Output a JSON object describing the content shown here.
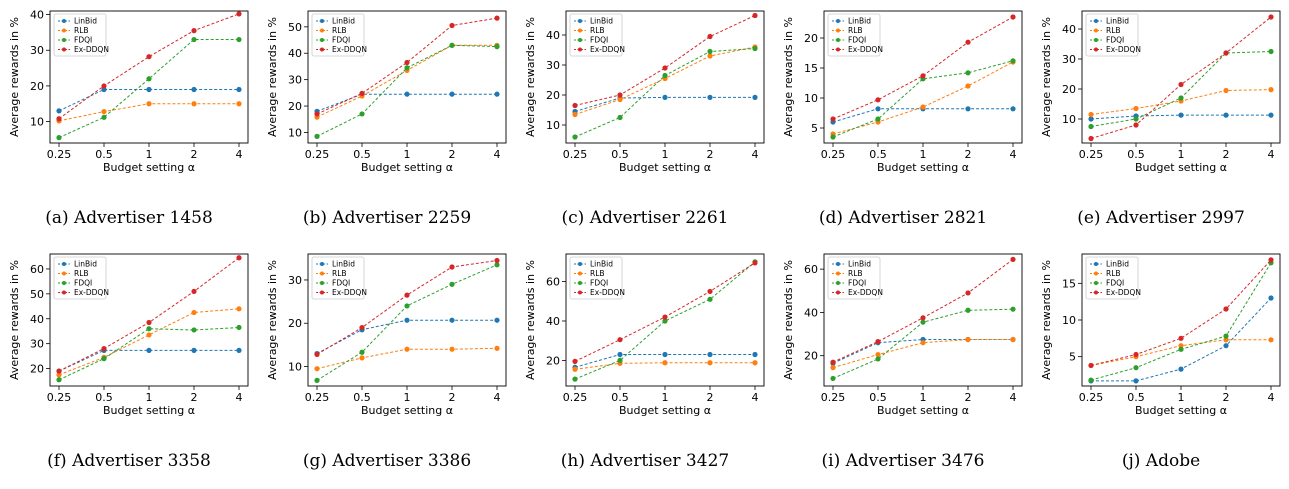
{
  "figure": {
    "legend_labels": [
      "LinBid",
      "RLB",
      "FDQI",
      "Ex-DDQN"
    ],
    "colors": {
      "LinBid": "#1f77b4",
      "RLB": "#ff7f0e",
      "FDQI": "#2ca02c",
      "Ex-DDQN": "#d62728"
    }
  },
  "chart_data": [
    {
      "type": "line",
      "caption": "(a) Advertiser 1458",
      "xlabel": "Budget setting α",
      "ylabel": "Average rewards in %",
      "categories": [
        "0.25",
        "0.5",
        "1",
        "2",
        "4"
      ],
      "yticks": [
        10,
        20,
        30,
        40
      ],
      "ylim": [
        4,
        41
      ],
      "legend": "top-left",
      "series": [
        {
          "name": "LinBid",
          "values": [
            13.0,
            19.0,
            19.0,
            19.0,
            19.0
          ]
        },
        {
          "name": "RLB",
          "values": [
            10.2,
            12.8,
            15.0,
            15.0,
            15.0
          ]
        },
        {
          "name": "FDQI",
          "values": [
            5.5,
            11.2,
            22.0,
            33.0,
            33.0
          ]
        },
        {
          "name": "Ex-DDQN",
          "values": [
            10.8,
            20.0,
            28.2,
            35.5,
            40.2
          ]
        }
      ]
    },
    {
      "type": "line",
      "caption": "(b) Advertiser 2259",
      "xlabel": "Budget setting α",
      "ylabel": "Average rewards in %",
      "categories": [
        "0.25",
        "0.5",
        "1",
        "2",
        "4"
      ],
      "yticks": [
        10,
        20,
        30,
        40,
        50
      ],
      "ylim": [
        6,
        56
      ],
      "legend": "top-left",
      "series": [
        {
          "name": "LinBid",
          "values": [
            18.0,
            24.5,
            24.5,
            24.5,
            24.5
          ]
        },
        {
          "name": "RLB",
          "values": [
            15.8,
            23.8,
            33.5,
            43.0,
            43.0
          ]
        },
        {
          "name": "FDQI",
          "values": [
            8.5,
            17.0,
            34.5,
            43.0,
            42.5
          ]
        },
        {
          "name": "Ex-DDQN",
          "values": [
            17.0,
            24.8,
            36.5,
            50.5,
            53.3
          ]
        }
      ]
    },
    {
      "type": "line",
      "caption": "(c) Advertiser 2261",
      "xlabel": "Budget setting α",
      "ylabel": "Average rewards in %",
      "categories": [
        "0.25",
        "0.5",
        "1",
        "2",
        "4"
      ],
      "yticks": [
        10,
        20,
        30,
        40
      ],
      "ylim": [
        4,
        48
      ],
      "legend": "top-left",
      "series": [
        {
          "name": "LinBid",
          "values": [
            14.5,
            19.0,
            19.2,
            19.2,
            19.2
          ]
        },
        {
          "name": "RLB",
          "values": [
            13.5,
            18.5,
            25.5,
            33.0,
            36.0
          ]
        },
        {
          "name": "FDQI",
          "values": [
            6.0,
            12.5,
            26.5,
            34.5,
            35.5
          ]
        },
        {
          "name": "Ex-DDQN",
          "values": [
            16.5,
            20.0,
            29.0,
            39.5,
            46.5
          ]
        }
      ]
    },
    {
      "type": "line",
      "caption": "(d) Advertiser 2821",
      "xlabel": "Budget setting α",
      "ylabel": "Average rewards in %",
      "categories": [
        "0.25",
        "0.5",
        "1",
        "2",
        "4"
      ],
      "yticks": [
        5,
        10,
        15,
        20
      ],
      "ylim": [
        2.5,
        24.5
      ],
      "legend": "top-left",
      "series": [
        {
          "name": "LinBid",
          "values": [
            6.0,
            8.2,
            8.2,
            8.2,
            8.2
          ]
        },
        {
          "name": "RLB",
          "values": [
            4.0,
            6.0,
            8.5,
            12.0,
            16.0
          ]
        },
        {
          "name": "FDQI",
          "values": [
            3.5,
            6.5,
            13.2,
            14.2,
            16.2
          ]
        },
        {
          "name": "Ex-DDQN",
          "values": [
            6.5,
            9.7,
            13.7,
            19.3,
            23.5
          ]
        }
      ]
    },
    {
      "type": "line",
      "caption": "(e) Advertiser 2997",
      "xlabel": "Budget setting α",
      "ylabel": "Average rewards in %",
      "categories": [
        "0.25",
        "0.5",
        "1",
        "2",
        "4"
      ],
      "yticks": [
        10,
        20,
        30,
        40
      ],
      "ylim": [
        2,
        46
      ],
      "legend": "top-left",
      "series": [
        {
          "name": "LinBid",
          "values": [
            10.0,
            11.0,
            11.3,
            11.3,
            11.3
          ]
        },
        {
          "name": "RLB",
          "values": [
            11.5,
            13.5,
            16.0,
            19.5,
            19.8
          ]
        },
        {
          "name": "FDQI",
          "values": [
            7.5,
            10.0,
            17.0,
            32.0,
            32.5
          ]
        },
        {
          "name": "Ex-DDQN",
          "values": [
            3.5,
            8.0,
            21.5,
            32.0,
            44.0
          ]
        }
      ]
    },
    {
      "type": "line",
      "caption": "(f) Advertiser 3358",
      "xlabel": "Budget setting α",
      "ylabel": "Average rewards in %",
      "categories": [
        "0.25",
        "0.5",
        "1",
        "2",
        "4"
      ],
      "yticks": [
        20,
        30,
        40,
        50,
        60
      ],
      "ylim": [
        13,
        66
      ],
      "legend": "top-left",
      "series": [
        {
          "name": "LinBid",
          "values": [
            19.0,
            27.3,
            27.3,
            27.3,
            27.3
          ]
        },
        {
          "name": "RLB",
          "values": [
            17.5,
            24.5,
            33.5,
            42.5,
            44.0
          ]
        },
        {
          "name": "FDQI",
          "values": [
            15.5,
            24.0,
            36.0,
            35.5,
            36.5
          ]
        },
        {
          "name": "Ex-DDQN",
          "values": [
            19.0,
            28.0,
            38.5,
            51.0,
            64.5
          ]
        }
      ]
    },
    {
      "type": "line",
      "caption": "(g) Advertiser 3386",
      "xlabel": "Budget setting α",
      "ylabel": "Average rewards in %",
      "categories": [
        "0.25",
        "0.5",
        "1",
        "2",
        "4"
      ],
      "yticks": [
        10,
        20,
        30
      ],
      "ylim": [
        5.5,
        36
      ],
      "legend": "top-left",
      "series": [
        {
          "name": "LinBid",
          "values": [
            13.0,
            18.5,
            20.7,
            20.7,
            20.7
          ]
        },
        {
          "name": "RLB",
          "values": [
            9.5,
            12.0,
            14.0,
            14.0,
            14.2
          ]
        },
        {
          "name": "FDQI",
          "values": [
            6.8,
            13.3,
            24.0,
            29.0,
            33.5
          ]
        },
        {
          "name": "Ex-DDQN",
          "values": [
            12.8,
            19.0,
            26.5,
            33.0,
            34.5
          ]
        }
      ]
    },
    {
      "type": "line",
      "caption": "(h) Advertiser 3427",
      "xlabel": "Budget setting α",
      "ylabel": "Average rewards in %",
      "categories": [
        "0.25",
        "0.5",
        "1",
        "2",
        "4"
      ],
      "yticks": [
        20,
        40,
        60
      ],
      "ylim": [
        7,
        74
      ],
      "legend": "top-left",
      "series": [
        {
          "name": "LinBid",
          "values": [
            16.5,
            23.0,
            23.0,
            23.0,
            23.0
          ]
        },
        {
          "name": "RLB",
          "values": [
            15.5,
            18.5,
            18.8,
            18.8,
            18.8
          ]
        },
        {
          "name": "FDQI",
          "values": [
            10.5,
            20.0,
            40.0,
            51.0,
            70.0
          ]
        },
        {
          "name": "Ex-DDQN",
          "values": [
            19.5,
            30.5,
            42.0,
            55.0,
            69.5
          ]
        }
      ]
    },
    {
      "type": "line",
      "caption": "(i) Advertiser 3476",
      "xlabel": "Budget setting α",
      "ylabel": "Average rewards in %",
      "categories": [
        "0.25",
        "0.5",
        "1",
        "2",
        "4"
      ],
      "yticks": [
        20,
        40,
        60
      ],
      "ylim": [
        6,
        67
      ],
      "legend": "top-left",
      "series": [
        {
          "name": "LinBid",
          "values": [
            16.5,
            26.0,
            27.5,
            27.5,
            27.5
          ]
        },
        {
          "name": "RLB",
          "values": [
            14.5,
            20.5,
            26.0,
            27.5,
            27.5
          ]
        },
        {
          "name": "FDQI",
          "values": [
            9.5,
            18.5,
            35.5,
            41.0,
            41.5
          ]
        },
        {
          "name": "Ex-DDQN",
          "values": [
            17.0,
            26.5,
            37.5,
            49.0,
            64.5
          ]
        }
      ]
    },
    {
      "type": "line",
      "caption": "(j) Adobe",
      "xlabel": "Budget setting α",
      "ylabel": "Average rewards in %",
      "categories": [
        "0.25",
        "0.5",
        "1",
        "2",
        "4"
      ],
      "yticks": [
        5,
        10,
        15
      ],
      "ylim": [
        1.0,
        19.0
      ],
      "legend": "top-left",
      "series": [
        {
          "name": "LinBid",
          "values": [
            1.7,
            1.7,
            3.3,
            6.5,
            13.0
          ]
        },
        {
          "name": "RLB",
          "values": [
            3.8,
            5.0,
            6.5,
            7.3,
            7.3
          ]
        },
        {
          "name": "FDQI",
          "values": [
            1.8,
            3.5,
            6.0,
            7.8,
            17.8
          ]
        },
        {
          "name": "Ex-DDQN",
          "values": [
            3.8,
            5.3,
            7.5,
            11.5,
            18.2
          ]
        }
      ]
    }
  ]
}
